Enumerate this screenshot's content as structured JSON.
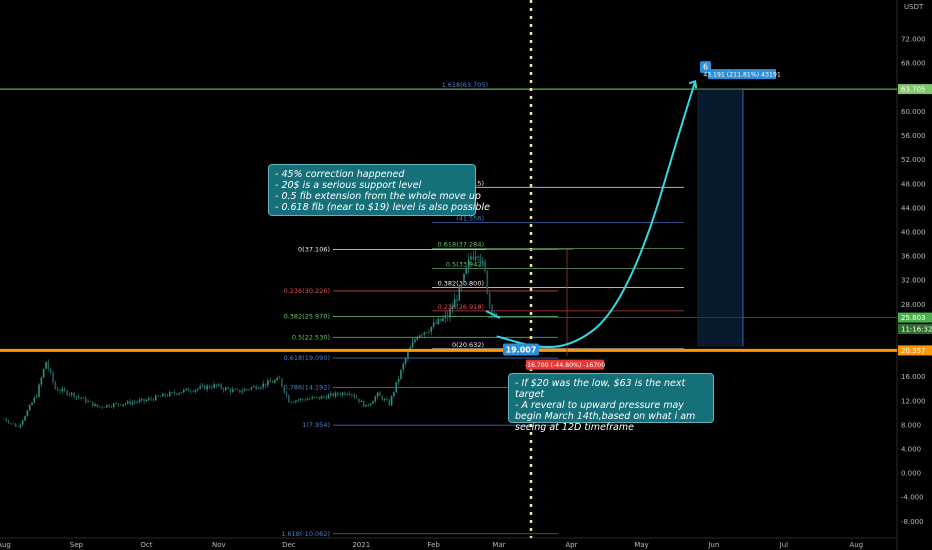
{
  "colors": {
    "candles": "#2d8f86",
    "fib_main": "#f0f0f0",
    "fib_green": "#6cc36c",
    "fib_red": "#e4534f",
    "fib_blue": "#4a7fd0",
    "support": "#ff9800",
    "target": "#7ec86a",
    "projection": "#33d8e0",
    "price_tag": "#4caf50",
    "label_blue": "#2e8fd8",
    "label_red": "#e53935"
  },
  "chart_data": {
    "type": "candlestick",
    "currency_label": "USDT",
    "y_range": [
      -9.6,
      75.0
    ],
    "y_ticks": [
      "72.000",
      "68.000",
      "64.000",
      "60.000",
      "56.000",
      "52.000",
      "48.000",
      "44.000",
      "40.000",
      "36.000",
      "32.000",
      "28.000",
      "24.000",
      "20.000",
      "16.000",
      "12.000",
      "8.000",
      "4.000",
      "0.000",
      "-4.000",
      "-8.000"
    ],
    "y_tick_values": [
      72,
      68,
      64,
      60,
      56,
      52,
      48,
      44,
      40,
      36,
      32,
      28,
      24,
      20,
      16,
      12,
      8,
      4,
      0,
      -4,
      -8
    ],
    "x_ticks": [
      "Aug",
      "Sep",
      "Oct",
      "Nov",
      "Dec",
      "2021",
      "Feb",
      "Mar",
      "Apr",
      "May",
      "Jun",
      "Jul",
      "Aug"
    ],
    "x_tick_days": [
      0,
      31,
      61,
      92,
      122,
      153,
      184,
      212,
      243,
      273,
      304,
      334,
      365
    ],
    "price_series_note": "daily close approximations from 2020-08-01",
    "price_anchors": [
      {
        "day": 0,
        "price": 9.0
      },
      {
        "day": 6,
        "price": 7.6
      },
      {
        "day": 14,
        "price": 13.0
      },
      {
        "day": 18,
        "price": 18.5
      },
      {
        "day": 22,
        "price": 14.0
      },
      {
        "day": 30,
        "price": 13.0
      },
      {
        "day": 40,
        "price": 11.0
      },
      {
        "day": 60,
        "price": 12.0
      },
      {
        "day": 75,
        "price": 13.5
      },
      {
        "day": 90,
        "price": 14.5
      },
      {
        "day": 100,
        "price": 13.5
      },
      {
        "day": 118,
        "price": 15.5
      },
      {
        "day": 122,
        "price": 12.0
      },
      {
        "day": 135,
        "price": 12.5
      },
      {
        "day": 148,
        "price": 13.5
      },
      {
        "day": 155,
        "price": 11.0
      },
      {
        "day": 160,
        "price": 13.0
      },
      {
        "day": 165,
        "price": 11.5
      },
      {
        "day": 172,
        "price": 19.0
      },
      {
        "day": 177,
        "price": 23.0
      },
      {
        "day": 182,
        "price": 24.0
      },
      {
        "day": 190,
        "price": 26.0
      },
      {
        "day": 196,
        "price": 31.0
      },
      {
        "day": 200,
        "price": 36.0
      },
      {
        "day": 203,
        "price": 37.1
      },
      {
        "day": 206,
        "price": 33.0
      },
      {
        "day": 208,
        "price": 28.0
      },
      {
        "day": 211,
        "price": 25.8
      }
    ],
    "fib_left": [
      {
        "label": "0(37.106)",
        "price": 37.106,
        "style": "main"
      },
      {
        "label": "0.236(30.226)",
        "price": 30.226,
        "style": "red"
      },
      {
        "label": "0.382(25.970)",
        "price": 25.97,
        "style": "green"
      },
      {
        "label": "0.5(22.530)",
        "price": 22.53,
        "style": "green"
      },
      {
        "label": "0.618(19.090)",
        "price": 19.09,
        "style": "blue"
      },
      {
        "label": "0.786(14.192)",
        "price": 14.192,
        "style": "blue"
      },
      {
        "label": "1(7.954)",
        "price": 7.954,
        "style": "blue"
      },
      {
        "label": "1.618(-10.062)",
        "price": -10.062,
        "style": "blue"
      }
    ],
    "fib_right": [
      {
        "label": "1.618(63.705)",
        "price": 63.705,
        "style": "blue"
      },
      {
        "label": "1(47.415)",
        "price": 47.415,
        "style": "main"
      },
      {
        "label": "(41.556)",
        "price": 41.556,
        "style": "blue"
      },
      {
        "label": "0.618(37.284)",
        "price": 37.284,
        "style": "green"
      },
      {
        "label": "0.5(33.942)",
        "price": 33.942,
        "style": "green"
      },
      {
        "label": "0.382(30.800)",
        "price": 30.8,
        "style": "main"
      },
      {
        "label": "0.236(26.918)",
        "price": 26.918,
        "style": "red"
      },
      {
        "label": "0(20.632)",
        "price": 20.632,
        "style": "main"
      }
    ],
    "support_level": 20.357,
    "target_level": 63.705,
    "current_price": 25.803,
    "price_labels": [
      {
        "text": "72.000",
        "price": 75.0,
        "note": "top tick partial"
      },
      {
        "text": "63.705",
        "price": 63.705,
        "color": "target"
      },
      {
        "text": "25.803",
        "price": 25.803,
        "color": "price_tag"
      },
      {
        "text": "11:16:32",
        "price": 23.9,
        "color": "price_tag_dark"
      },
      {
        "text": "20.357",
        "price": 20.357,
        "color": "support"
      }
    ],
    "low_marker": {
      "text": "19.007",
      "price": 19.007
    },
    "drop_label": {
      "text": "-16.700 (-44.80%) -16700"
    },
    "target_marker": {
      "text": "6",
      "price": 66.5
    },
    "target_box": {
      "text": "43.191 (211.81%) 43191"
    },
    "projection_curve": [
      {
        "day": 211,
        "price": 22.7
      },
      {
        "day": 230,
        "price": 20.6
      },
      {
        "day": 245,
        "price": 21.5
      },
      {
        "day": 260,
        "price": 26.0
      },
      {
        "day": 275,
        "price": 38.0
      },
      {
        "day": 288,
        "price": 55.0
      },
      {
        "day": 296,
        "price": 65.0
      }
    ]
  },
  "notes": {
    "top": [
      "- 45% correction happened",
      "- 20$ is a serious support level",
      "- 0.5 fib extension from the whole move up",
      "- 0.618 fib (near to $19) level is also possible"
    ],
    "bottom": [
      "- If $20 was the low, $63 is the next target",
      "- A reveral to upward pressure may begin March 14th,based on what i am seeing at 12D timeframe"
    ]
  }
}
